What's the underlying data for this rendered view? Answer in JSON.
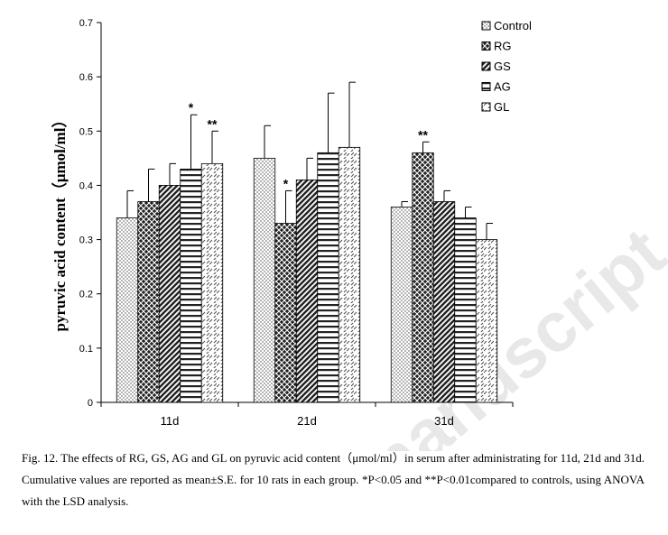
{
  "watermark": "manuscript",
  "caption": "Fig. 12. The effects of RG, GS, AG and GL on pyruvic acid content（μmol/ml）in serum after administrating for 11d, 21d and 31d. Cumulative values are reported as mean±S.E. for 10 rats in each group. *P<0.05 and **P<0.01compared to controls, using ANOVA with the LSD analysis.",
  "chart_data": {
    "type": "bar",
    "title": "",
    "xlabel": "",
    "ylabel": "pyruvic acid content（μmol/ml）",
    "ylim": [
      0,
      0.7
    ],
    "yticks": [
      0,
      0.1,
      0.2,
      0.3,
      0.4,
      0.5,
      0.6,
      0.7
    ],
    "ytick_labels": [
      "0",
      "0.1",
      "0.2",
      "0.3",
      "0.4",
      "0.5",
      "0.6",
      "0.7"
    ],
    "categories": [
      "11d",
      "21d",
      "31d"
    ],
    "legend_position": "top-right",
    "grid": false,
    "series": [
      {
        "name": "Control",
        "pattern": "dots",
        "values": [
          0.34,
          0.45,
          0.36
        ],
        "errors": [
          0.05,
          0.06,
          0.01
        ],
        "significance": [
          "",
          "",
          ""
        ]
      },
      {
        "name": "RG",
        "pattern": "crosshatch",
        "values": [
          0.37,
          0.33,
          0.46
        ],
        "errors": [
          0.06,
          0.06,
          0.02
        ],
        "significance": [
          "",
          "*",
          "**"
        ]
      },
      {
        "name": "GS",
        "pattern": "wide-diagonal",
        "values": [
          0.4,
          0.41,
          0.37
        ],
        "errors": [
          0.04,
          0.04,
          0.02
        ],
        "significance": [
          "",
          "",
          ""
        ]
      },
      {
        "name": "AG",
        "pattern": "horizontal",
        "values": [
          0.43,
          0.46,
          0.34
        ],
        "errors": [
          0.1,
          0.11,
          0.02
        ],
        "significance": [
          "*",
          "",
          ""
        ]
      },
      {
        "name": "GL",
        "pattern": "dashed-diagonal",
        "values": [
          0.44,
          0.47,
          0.3
        ],
        "errors": [
          0.06,
          0.12,
          0.03
        ],
        "significance": [
          "**",
          "",
          ""
        ]
      }
    ]
  }
}
